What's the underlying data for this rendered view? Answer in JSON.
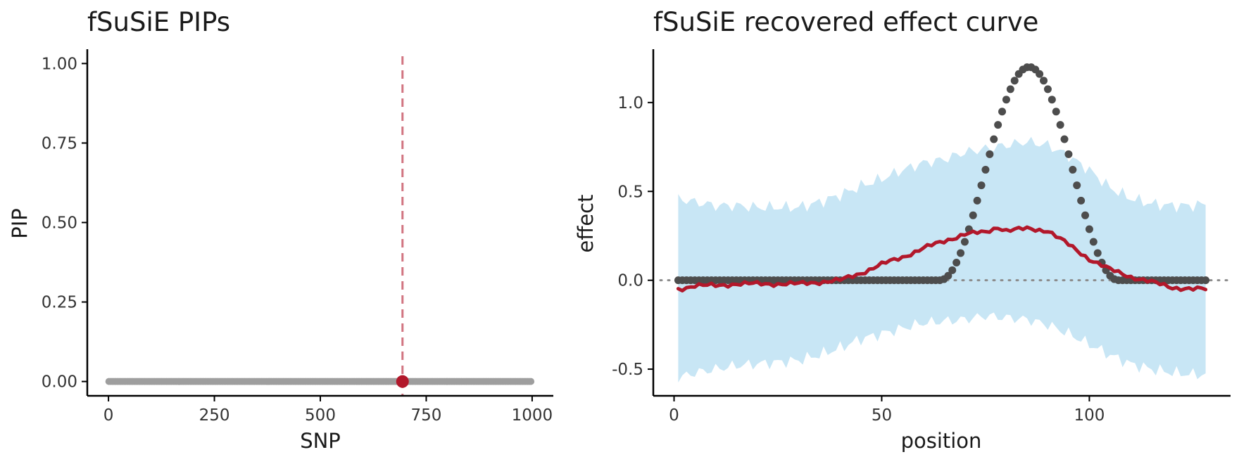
{
  "colors": {
    "pip_points": "#9e9e9e",
    "highlight": "#b2182b",
    "true_effect_points": "#4d4d4d",
    "estimate_line": "#b2182b",
    "credible_band": "#c8e6f5",
    "zero_line": "#8c8c8c",
    "axis": "#000000"
  },
  "chart_data": [
    {
      "type": "scatter",
      "title": "fSuSiE PIPs",
      "xlabel": "SNP",
      "ylabel": "PIP",
      "xlim": [
        -50,
        1050
      ],
      "ylim": [
        -0.045,
        1.045
      ],
      "xticks": [
        0,
        250,
        500,
        750,
        1000
      ],
      "xtick_labels": [
        "0",
        "250",
        "500",
        "750",
        "1000"
      ],
      "yticks": [
        0,
        0.25,
        0.5,
        0.75,
        1.0
      ],
      "ytick_labels": [
        "0.00",
        "0.25",
        "0.50",
        "0.75",
        "1.00"
      ],
      "grid": false,
      "legend": "none",
      "n_snps": 1000,
      "baseline_pip": 0.0,
      "highlighted_snp": {
        "x": 694,
        "pip": 0.0
      },
      "reference_line": {
        "x": 694,
        "style": "dashed"
      }
    },
    {
      "type": "line",
      "title": "fSuSiE recovered effect curve",
      "xlabel": "position",
      "ylabel": "effect",
      "xlim": [
        -5,
        134
      ],
      "ylim": [
        -0.65,
        1.3
      ],
      "xticks": [
        0,
        50,
        100
      ],
      "xtick_labels": [
        "0",
        "50",
        "100"
      ],
      "yticks": [
        -0.5,
        0.0,
        0.5,
        1.0
      ],
      "ytick_labels": [
        "-0.5",
        "0.0",
        "0.5",
        "1.0"
      ],
      "grid": false,
      "legend": "none",
      "reference_line": {
        "y": 0,
        "style": "dotted"
      },
      "positions": {
        "start": 1,
        "end": 128
      },
      "true_effect": {
        "bump_start": 64,
        "bump_end": 107,
        "peak_position": 85.5,
        "peak_value": 1.2
      },
      "estimate": {
        "x": [
          1,
          5,
          10,
          15,
          20,
          25,
          30,
          35,
          40,
          45,
          50,
          55,
          60,
          65,
          70,
          75,
          78,
          80,
          85,
          90,
          95,
          100,
          105,
          110,
          115,
          120,
          125,
          128
        ],
        "y": [
          -0.05,
          -0.03,
          -0.03,
          -0.02,
          -0.02,
          -0.02,
          -0.02,
          -0.01,
          0.0,
          0.04,
          0.09,
          0.13,
          0.18,
          0.22,
          0.26,
          0.27,
          0.3,
          0.28,
          0.29,
          0.28,
          0.2,
          0.12,
          0.06,
          0.02,
          -0.01,
          -0.04,
          -0.05,
          -0.05
        ]
      },
      "band": {
        "x": [
          1,
          5,
          10,
          15,
          20,
          25,
          30,
          35,
          40,
          45,
          50,
          55,
          60,
          65,
          70,
          75,
          80,
          85,
          90,
          95,
          100,
          105,
          110,
          115,
          120,
          125,
          128
        ],
        "lower": [
          -0.55,
          -0.52,
          -0.5,
          -0.48,
          -0.47,
          -0.46,
          -0.45,
          -0.42,
          -0.38,
          -0.33,
          -0.3,
          -0.27,
          -0.24,
          -0.23,
          -0.22,
          -0.2,
          -0.21,
          -0.22,
          -0.25,
          -0.3,
          -0.36,
          -0.42,
          -0.47,
          -0.5,
          -0.52,
          -0.53,
          -0.53
        ],
        "upper": [
          0.46,
          0.44,
          0.42,
          0.42,
          0.41,
          0.41,
          0.41,
          0.44,
          0.48,
          0.53,
          0.57,
          0.62,
          0.66,
          0.68,
          0.72,
          0.74,
          0.76,
          0.78,
          0.76,
          0.7,
          0.62,
          0.52,
          0.46,
          0.43,
          0.42,
          0.42,
          0.43
        ]
      }
    }
  ]
}
